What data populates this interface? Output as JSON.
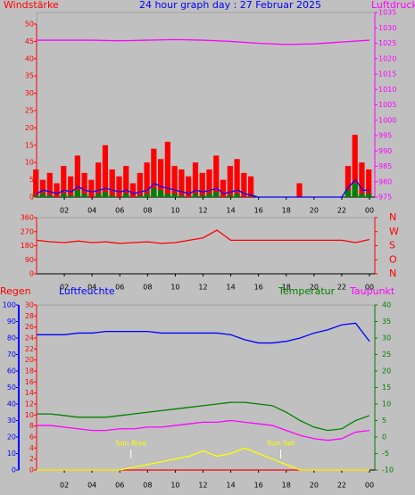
{
  "chart_data": [
    {
      "type": "bar",
      "title": "24 hour graph day : 27 Februar 2025",
      "ylabel": "Windstärke",
      "y2label": "Luftdruck",
      "xlim": [
        0,
        24
      ],
      "xticks": [
        {
          "value": 2,
          "label": "02"
        },
        {
          "value": 4,
          "label": "04"
        },
        {
          "value": 6,
          "label": "06"
        },
        {
          "value": 8,
          "label": "08"
        },
        10,
        12,
        14,
        16,
        18,
        20,
        22,
        {
          "value": 24,
          "label": "00"
        }
      ],
      "ylim": [
        0,
        50
      ],
      "yticks": [
        0,
        5,
        10,
        15,
        20,
        25,
        30,
        35,
        40,
        45,
        50
      ],
      "ycolor": "#ff0000",
      "y2lim": [
        975,
        1035
      ],
      "y2ticks": [
        975,
        980,
        985,
        990,
        995,
        1000,
        1005,
        1010,
        1015,
        1020,
        1025,
        1030,
        1035
      ],
      "y2color": "#ff00ff",
      "series": [
        {
          "style": "bar",
          "color": "#ff0000",
          "x": [
            0,
            0.5,
            1,
            1.5,
            2,
            2.5,
            3,
            3.5,
            4,
            4.5,
            5,
            5.5,
            6,
            6.5,
            7,
            7.5,
            8,
            8.5,
            9,
            9.5,
            10,
            10.5,
            11,
            11.5,
            12,
            12.5,
            13,
            13.5,
            14,
            14.5,
            15,
            15.5,
            16,
            16.5,
            17,
            17.5,
            18,
            18.5,
            19,
            19.5,
            20,
            20.5,
            21,
            21.5,
            22,
            22.5,
            23,
            23.5,
            24
          ],
          "values": [
            8,
            5,
            7,
            4,
            9,
            6,
            12,
            7,
            5,
            10,
            15,
            8,
            6,
            9,
            4,
            7,
            10,
            14,
            11,
            16,
            9,
            8,
            6,
            10,
            7,
            8,
            12,
            5,
            9,
            11,
            7,
            6,
            0,
            0,
            0,
            0,
            0,
            0,
            4,
            0,
            0,
            0,
            0,
            0,
            0,
            9,
            18,
            10,
            8
          ]
        },
        {
          "style": "bar",
          "color": "#008000",
          "x": [
            0,
            0.5,
            1,
            1.5,
            2,
            2.5,
            3,
            3.5,
            4,
            4.5,
            5,
            5.5,
            6,
            6.5,
            7,
            7.5,
            8,
            8.5,
            9,
            9.5,
            10,
            10.5,
            11,
            11.5,
            12,
            12.5,
            13,
            13.5,
            14,
            14.5,
            15,
            15.5,
            16,
            16.5,
            17,
            17.5,
            18,
            18.5,
            19,
            19.5,
            20,
            20.5,
            21,
            21.5,
            22,
            22.5,
            23,
            23.5,
            24
          ],
          "values": [
            0.5,
            1,
            0.5,
            0,
            1,
            0.5,
            2,
            1,
            0,
            1,
            1.5,
            0.5,
            0,
            1,
            0,
            0.5,
            1,
            2.5,
            2,
            1,
            1,
            0.5,
            0,
            1,
            0.5,
            1,
            1.5,
            0,
            0.5,
            1,
            0,
            0,
            0,
            0,
            0,
            0,
            0,
            0,
            0,
            0,
            0,
            0,
            0,
            0,
            0,
            2,
            4,
            1,
            1
          ]
        },
        {
          "style": "line",
          "color": "#0000ff",
          "x": [
            0,
            0.5,
            1,
            1.5,
            2,
            2.5,
            3,
            3.5,
            4,
            4.5,
            5,
            5.5,
            6,
            6.5,
            7,
            7.5,
            8,
            8.5,
            9,
            9.5,
            10,
            10.5,
            11,
            11.5,
            12,
            12.5,
            13,
            13.5,
            14,
            14.5,
            15,
            15.5,
            16,
            16.5,
            17,
            17.5,
            18,
            18.5,
            19,
            19.5,
            20,
            20.5,
            21,
            21.5,
            22,
            22.5,
            23,
            23.5,
            24
          ],
          "values": [
            1,
            2,
            1.5,
            1,
            2,
            1.5,
            3,
            2,
            1.5,
            2,
            2.5,
            2,
            1.5,
            2,
            1,
            1.5,
            2,
            4,
            3,
            2.5,
            2,
            1.5,
            1,
            2,
            1.5,
            2,
            2.5,
            1,
            1.5,
            2,
            1,
            0.5,
            0,
            0,
            0,
            0,
            0,
            0,
            0,
            0,
            0,
            0,
            0,
            0,
            0,
            3,
            5,
            2,
            2
          ]
        },
        {
          "style": "line",
          "color": "#ff00ff",
          "axis": "y2",
          "x": [
            0,
            2,
            4,
            6,
            8,
            10,
            12,
            14,
            16,
            18,
            20,
            22,
            24
          ],
          "values": [
            1026,
            1026,
            1026,
            1025.8,
            1026,
            1026.2,
            1026,
            1025.6,
            1025,
            1024.6,
            1024.8,
            1025.4,
            1026
          ]
        }
      ]
    },
    {
      "type": "line",
      "xlim": [
        0,
        24
      ],
      "xticks": [
        {
          "value": 2,
          "label": "02"
        },
        {
          "value": 4,
          "label": "04"
        },
        {
          "value": 6,
          "label": "06"
        },
        {
          "value": 8,
          "label": "08"
        },
        10,
        12,
        14,
        16,
        18,
        20,
        22,
        {
          "value": 24,
          "label": "00"
        }
      ],
      "ylim": [
        0,
        360
      ],
      "yticks": [
        0,
        90,
        180,
        270,
        360
      ],
      "ycolor": "#ff0000",
      "y2lim": [
        0,
        360
      ],
      "y2ticks": [
        {
          "value": 0,
          "label": "N"
        },
        {
          "value": 90,
          "label": "O"
        },
        {
          "value": 180,
          "label": "S"
        },
        {
          "value": 270,
          "label": "W"
        },
        {
          "value": 360,
          "label": "N"
        }
      ],
      "y2color": "#ff0000",
      "series": [
        {
          "style": "line",
          "color": "#ff0000",
          "x": [
            0,
            1,
            2,
            3,
            4,
            5,
            6,
            7,
            8,
            9,
            10,
            11,
            12,
            13,
            14,
            15,
            16,
            17,
            18,
            19,
            20,
            21,
            22,
            23,
            24
          ],
          "values": [
            215,
            205,
            200,
            210,
            200,
            205,
            195,
            200,
            205,
            195,
            200,
            215,
            230,
            280,
            215,
            215,
            215,
            215,
            215,
            215,
            215,
            215,
            215,
            200,
            220
          ]
        }
      ]
    },
    {
      "type": "line",
      "xlim": [
        0,
        24
      ],
      "xticks": [
        {
          "value": 2,
          "label": "02"
        },
        {
          "value": 4,
          "label": "04"
        },
        {
          "value": 6,
          "label": "06"
        },
        {
          "value": 8,
          "label": "08"
        },
        10,
        12,
        14,
        16,
        18,
        20,
        22,
        {
          "value": 24,
          "label": "00"
        }
      ],
      "ylim": [
        0,
        100
      ],
      "yticks": [
        0,
        10,
        20,
        30,
        40,
        50,
        60,
        70,
        80,
        90,
        100
      ],
      "ycolor": "#0000ff",
      "y2lim": [
        -10,
        40
      ],
      "y2ticks": [
        -10,
        -5,
        0,
        5,
        10,
        15,
        20,
        25,
        30,
        35,
        40
      ],
      "y2color": "#008000",
      "y3lim": [
        0,
        30
      ],
      "y3ticks": [
        0,
        2,
        4,
        6,
        8,
        10,
        12,
        14,
        16,
        18,
        20,
        22,
        24,
        26,
        28,
        30
      ],
      "y3color": "#ff0000",
      "annotations": [
        {
          "text": "Sun Rise",
          "x": 6.8
        },
        {
          "text": "Sun Set",
          "x": 17.6
        }
      ],
      "series": [
        {
          "name": "Regen",
          "style": "line",
          "color": "#ff0000",
          "axis": "y3",
          "x": [
            0,
            1,
            2,
            3,
            4,
            5,
            6,
            7,
            8,
            9,
            10,
            11,
            12,
            13,
            14,
            15,
            16,
            17,
            18,
            19,
            20,
            21,
            22,
            23,
            24
          ],
          "values": [
            0,
            0,
            0,
            0,
            0,
            0,
            0,
            0,
            0,
            0,
            0,
            0,
            0,
            0,
            0,
            0,
            0,
            0,
            0,
            0,
            0,
            0,
            0,
            0,
            0
          ]
        },
        {
          "name": "Luftfeuchte",
          "style": "line",
          "color": "#0000ff",
          "x": [
            0,
            1,
            2,
            3,
            4,
            5,
            6,
            7,
            8,
            9,
            10,
            11,
            12,
            13,
            14,
            15,
            16,
            17,
            18,
            19,
            20,
            21,
            22,
            23,
            24
          ],
          "values": [
            82,
            82,
            82,
            83,
            83,
            84,
            84,
            84,
            84,
            83,
            83,
            83,
            83,
            83,
            82,
            79,
            77,
            77,
            78,
            80,
            83,
            85,
            88,
            89,
            78
          ]
        },
        {
          "name": "Temperatur",
          "style": "line",
          "color": "#008000",
          "axis": "y2",
          "x": [
            0,
            1,
            2,
            3,
            4,
            5,
            6,
            7,
            8,
            9,
            10,
            11,
            12,
            13,
            14,
            15,
            16,
            17,
            18,
            19,
            20,
            21,
            22,
            23,
            24
          ],
          "values": [
            7,
            7,
            6.5,
            6,
            6,
            6,
            6.5,
            7,
            7.5,
            8,
            8.5,
            9,
            9.5,
            10,
            10.5,
            10.5,
            10,
            9.5,
            7.5,
            5,
            3,
            2,
            2.5,
            5,
            6.5
          ]
        },
        {
          "name": "Taupunkt",
          "style": "line",
          "color": "#ff00ff",
          "axis": "y2",
          "x": [
            0,
            1,
            2,
            3,
            4,
            5,
            6,
            7,
            8,
            9,
            10,
            11,
            12,
            13,
            14,
            15,
            16,
            17,
            18,
            19,
            20,
            21,
            22,
            23,
            24
          ],
          "values": [
            3.5,
            3.5,
            3,
            2.5,
            2,
            2,
            2.5,
            2.5,
            3,
            3,
            3.5,
            4,
            4.5,
            4.5,
            5,
            4.5,
            4,
            3.5,
            2,
            0.5,
            -0.5,
            -1,
            -0.5,
            1.5,
            2
          ]
        },
        {
          "style": "line",
          "color": "#ffff00",
          "axis": "y3",
          "x": [
            0,
            1,
            2,
            3,
            4,
            5,
            6,
            7,
            8,
            9,
            10,
            11,
            12,
            13,
            14,
            15,
            16,
            17,
            18,
            19,
            20,
            21,
            22,
            23,
            24
          ],
          "values": [
            0,
            0,
            0,
            0,
            0,
            0,
            0,
            0.5,
            1,
            1.5,
            2,
            2.5,
            3.5,
            2.5,
            3,
            4,
            3,
            2,
            1,
            0,
            0,
            0,
            0,
            0,
            0
          ]
        }
      ]
    }
  ]
}
